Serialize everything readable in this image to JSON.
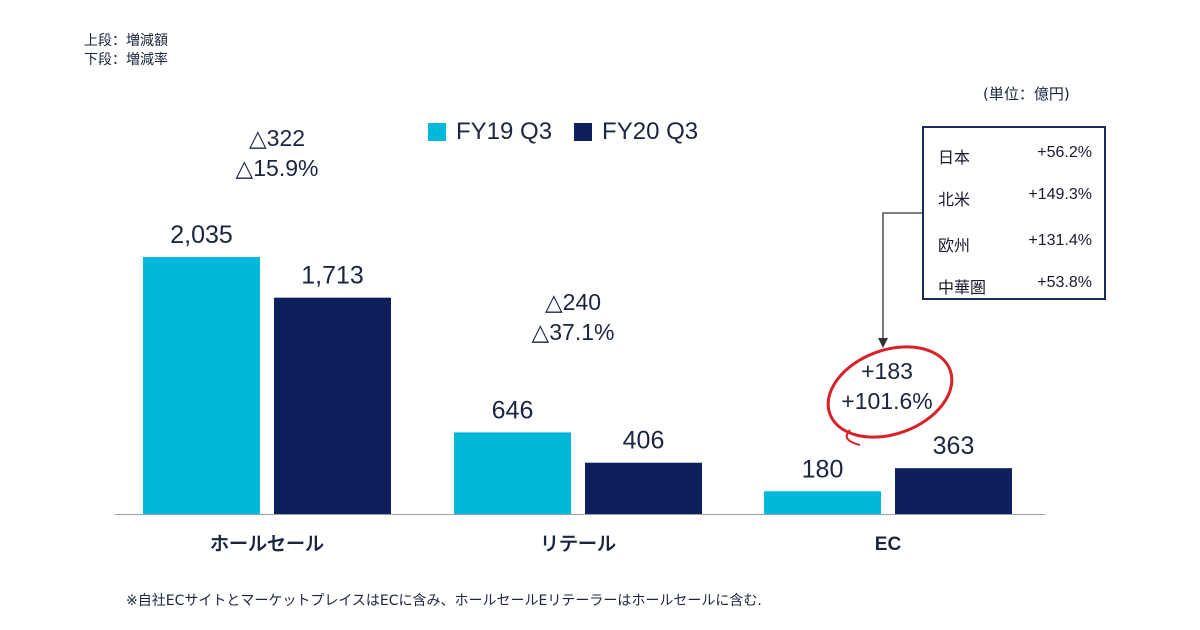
{
  "notes": {
    "line1": "上段：増減額",
    "line2": "下段：増減率"
  },
  "unit": "(単位：億円)",
  "legend": [
    {
      "label": "FY19 Q3",
      "color": "#00b8da"
    },
    {
      "label": "FY20 Q3",
      "color": "#0d1f5c"
    }
  ],
  "region_box": {
    "rows": [
      {
        "name": "日本",
        "value": "+56.2%"
      },
      {
        "name": "北米",
        "value": "+149.3%"
      },
      {
        "name": "欧州",
        "value": "+131.4%"
      },
      {
        "name": "中華圏",
        "value": "+53.8%"
      }
    ]
  },
  "footnote": "※自社ECサイトとマーケットプレイスはECに含み、ホールセールEリテーラーはホールセールに含む.",
  "chart_data": {
    "type": "bar",
    "categories": [
      "ホールセール",
      "リテール",
      "EC"
    ],
    "series": [
      {
        "name": "FY19 Q3",
        "values": [
          2035,
          646,
          180
        ],
        "color": "#00b8da"
      },
      {
        "name": "FY20 Q3",
        "values": [
          1713,
          406,
          363
        ],
        "color": "#0d1f5c"
      }
    ],
    "data_labels": [
      [
        "2,035",
        "1,713"
      ],
      [
        "646",
        "406"
      ],
      [
        "180",
        "363"
      ]
    ],
    "change_labels": [
      {
        "amount": "△322",
        "rate": "△15.9%"
      },
      {
        "amount": "△240",
        "rate": "△37.1%"
      },
      {
        "amount": "+183",
        "rate": "+101.6%"
      }
    ],
    "ylim": [
      0,
      2500
    ]
  }
}
